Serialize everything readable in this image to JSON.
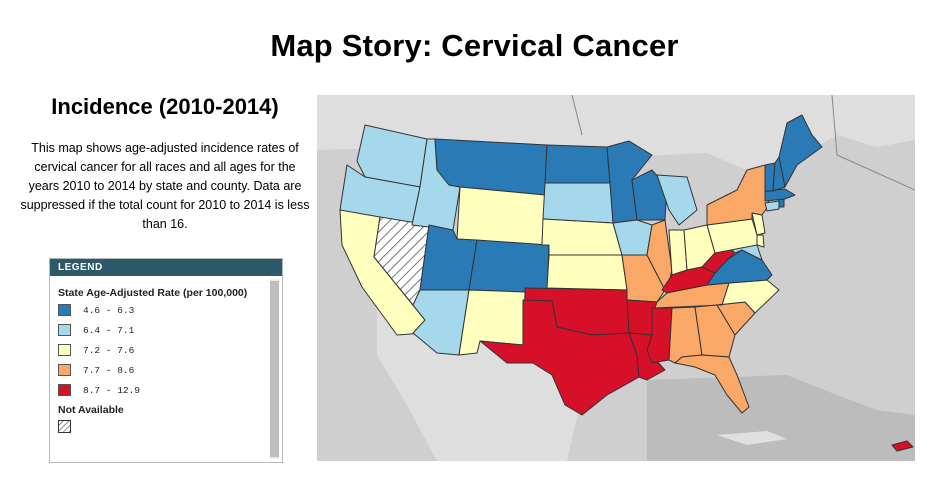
{
  "title": "Map Story: Cervical Cancer",
  "section_title": "Incidence (2010-2014)",
  "description": "This map shows age-adjusted incidence rates of cervical cancer for all races and all ages for the years 2010 to 2014 by state and county. Data are suppressed if the total count for 2010 to 2014 is less than 16.",
  "legend": {
    "header": "LEGEND",
    "title": "State Age-Adjusted Rate (per 100,000)",
    "items": [
      {
        "label": "4.6 - 6.3",
        "color": "#2a7ab5"
      },
      {
        "label": "6.4 - 7.1",
        "color": "#a6d8ec"
      },
      {
        "label": "7.2 - 7.6",
        "color": "#ffffbe"
      },
      {
        "label": "7.7 - 8.6",
        "color": "#f9a867"
      },
      {
        "label": "8.7 - 12.9",
        "color": "#d7102a"
      }
    ],
    "na_label": "Not Available"
  },
  "map": {
    "categories": {
      "c1": "#2a7ab5",
      "c2": "#a6d8ec",
      "c3": "#ffffbe",
      "c4": "#f9a867",
      "c5": "#d7102a",
      "na": "hatch"
    },
    "states": {
      "WA": "c2",
      "OR": "c2",
      "CA": "c3",
      "NV": "na",
      "ID": "c2",
      "MT": "c1",
      "WY": "c3",
      "UT": "c1",
      "CO": "c1",
      "AZ": "c2",
      "NM": "c3",
      "ND": "c1",
      "SD": "c2",
      "NE": "c3",
      "KS": "c3",
      "OK": "c5",
      "TX": "c5",
      "MN": "c1",
      "IA": "c2",
      "MO": "c4",
      "AR": "c5",
      "LA": "c5",
      "WI": "c1",
      "IL": "c4",
      "MI": "c2",
      "IN": "c3",
      "OH": "c3",
      "KY": "c5",
      "TN": "c4",
      "MS": "c5",
      "AL": "c4",
      "GA": "c4",
      "FL": "c4",
      "SC": "c4",
      "NC": "c3",
      "VA": "c1",
      "WV": "c5",
      "PA": "c3",
      "NY": "c4",
      "VT": "c1",
      "NH": "c1",
      "ME": "c1",
      "MA": "c1",
      "CT": "c2",
      "RI": "c1",
      "NJ": "c3",
      "DE": "c3",
      "MD": "c2",
      "PR": "c5"
    }
  }
}
